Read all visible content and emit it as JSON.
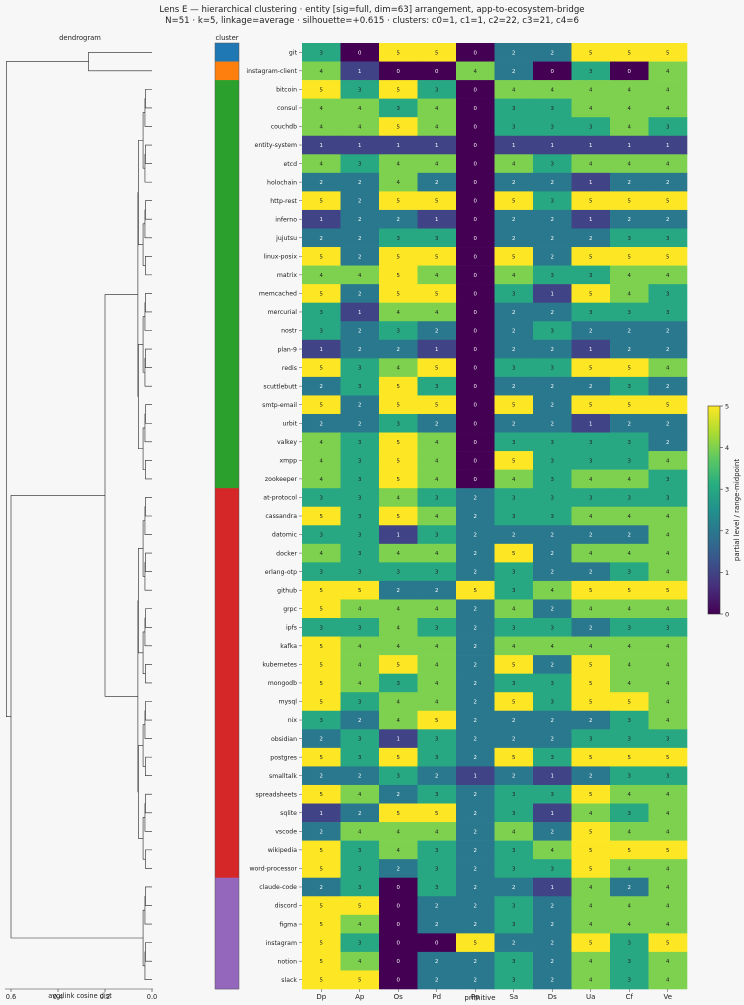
{
  "chart_data": {
    "type": "heatmap",
    "title_line1": "Lens E — hierarchical clustering · entity [sig=full, dim=63] arrangement, app-to-ecosystem-bridge",
    "title_line2": "N=51 · k=5, linkage=average · silhouette=+0.615 · clusters: c0=1, c1=1, c2=22, c3=21, c4=6",
    "dendrogram_title": "dendrogram",
    "dendrogram_xlabel": "avg-link cosine dist",
    "dendrogram_ticks": [
      0.6,
      0.4,
      0.2,
      0.0
    ],
    "dendrogram_xlim": [
      0.65,
      0.0
    ],
    "cluster_title": "cluster",
    "xlabel": "primitive",
    "colorbar_label": "partial level / range-midpoint",
    "colorbar_ticks": [
      0,
      1,
      2,
      3,
      4,
      5
    ],
    "vmin": 0,
    "vmax": 5,
    "columns": [
      "Dp",
      "Ap",
      "Os",
      "Pd",
      "Pp",
      "Sa",
      "Ds",
      "Ua",
      "Cf",
      "Ve"
    ],
    "cluster_colors": [
      "#1f77b4",
      "#ff7f0e",
      "#2ca02c",
      "#d62728",
      "#9467bd"
    ],
    "rows": [
      {
        "name": "git",
        "cluster": 0,
        "values": [
          3,
          0,
          5,
          5,
          0,
          2,
          2,
          5,
          5,
          5
        ]
      },
      {
        "name": "instagram-client",
        "cluster": 1,
        "values": [
          4,
          1,
          0,
          0,
          4,
          2,
          0,
          3,
          0,
          4
        ]
      },
      {
        "name": "bitcoin",
        "cluster": 2,
        "values": [
          5,
          3,
          5,
          3,
          0,
          4,
          4,
          4,
          4,
          4
        ]
      },
      {
        "name": "consul",
        "cluster": 2,
        "values": [
          4,
          4,
          3,
          4,
          0,
          3,
          3,
          4,
          4,
          4
        ]
      },
      {
        "name": "couchdb",
        "cluster": 2,
        "values": [
          4,
          4,
          5,
          4,
          0,
          3,
          3,
          3,
          4,
          3
        ]
      },
      {
        "name": "entity-system",
        "cluster": 2,
        "values": [
          1,
          1,
          1,
          1,
          0,
          1,
          1,
          1,
          1,
          1
        ]
      },
      {
        "name": "etcd",
        "cluster": 2,
        "values": [
          4,
          3,
          4,
          4,
          0,
          4,
          3,
          4,
          4,
          4
        ]
      },
      {
        "name": "holochain",
        "cluster": 2,
        "values": [
          2,
          2,
          4,
          2,
          0,
          2,
          2,
          1,
          2,
          2
        ]
      },
      {
        "name": "http-rest",
        "cluster": 2,
        "values": [
          5,
          2,
          5,
          5,
          0,
          5,
          3,
          5,
          5,
          5
        ]
      },
      {
        "name": "inferno",
        "cluster": 2,
        "values": [
          1,
          2,
          2,
          1,
          0,
          2,
          2,
          1,
          2,
          2
        ]
      },
      {
        "name": "jujutsu",
        "cluster": 2,
        "values": [
          2,
          2,
          3,
          3,
          0,
          2,
          2,
          2,
          3,
          3
        ]
      },
      {
        "name": "linux-posix",
        "cluster": 2,
        "values": [
          5,
          2,
          5,
          5,
          0,
          5,
          2,
          5,
          5,
          5
        ]
      },
      {
        "name": "matrix",
        "cluster": 2,
        "values": [
          4,
          4,
          5,
          4,
          0,
          4,
          3,
          3,
          4,
          4
        ]
      },
      {
        "name": "memcached",
        "cluster": 2,
        "values": [
          5,
          2,
          5,
          5,
          0,
          3,
          1,
          5,
          4,
          3
        ]
      },
      {
        "name": "mercurial",
        "cluster": 2,
        "values": [
          3,
          1,
          4,
          4,
          0,
          2,
          2,
          3,
          3,
          3
        ]
      },
      {
        "name": "nostr",
        "cluster": 2,
        "values": [
          3,
          2,
          3,
          2,
          0,
          2,
          3,
          2,
          2,
          2
        ]
      },
      {
        "name": "plan-9",
        "cluster": 2,
        "values": [
          1,
          2,
          2,
          1,
          0,
          2,
          2,
          1,
          2,
          2
        ]
      },
      {
        "name": "redis",
        "cluster": 2,
        "values": [
          5,
          3,
          4,
          5,
          0,
          3,
          3,
          5,
          5,
          4
        ]
      },
      {
        "name": "scuttlebutt",
        "cluster": 2,
        "values": [
          2,
          3,
          5,
          3,
          0,
          2,
          2,
          2,
          3,
          2
        ]
      },
      {
        "name": "smtp-email",
        "cluster": 2,
        "values": [
          5,
          2,
          5,
          5,
          0,
          5,
          2,
          5,
          5,
          5
        ]
      },
      {
        "name": "urbit",
        "cluster": 2,
        "values": [
          2,
          2,
          3,
          2,
          0,
          2,
          2,
          1,
          2,
          2
        ]
      },
      {
        "name": "valkey",
        "cluster": 2,
        "values": [
          4,
          3,
          5,
          4,
          0,
          3,
          3,
          3,
          3,
          2
        ]
      },
      {
        "name": "xmpp",
        "cluster": 2,
        "values": [
          4,
          3,
          5,
          4,
          0,
          5,
          3,
          3,
          3,
          4
        ]
      },
      {
        "name": "zookeeper",
        "cluster": 2,
        "values": [
          4,
          3,
          5,
          4,
          0,
          4,
          3,
          4,
          4,
          3
        ]
      },
      {
        "name": "at-protocol",
        "cluster": 3,
        "values": [
          3,
          3,
          4,
          3,
          2,
          3,
          3,
          3,
          3,
          3
        ]
      },
      {
        "name": "cassandra",
        "cluster": 3,
        "values": [
          5,
          3,
          5,
          4,
          2,
          3,
          3,
          4,
          4,
          4
        ]
      },
      {
        "name": "datomic",
        "cluster": 3,
        "values": [
          3,
          3,
          1,
          3,
          2,
          2,
          2,
          2,
          2,
          4
        ]
      },
      {
        "name": "docker",
        "cluster": 3,
        "values": [
          4,
          3,
          4,
          4,
          2,
          5,
          2,
          4,
          4,
          4
        ]
      },
      {
        "name": "erlang-otp",
        "cluster": 3,
        "values": [
          3,
          3,
          3,
          3,
          2,
          3,
          2,
          2,
          3,
          4
        ]
      },
      {
        "name": "github",
        "cluster": 3,
        "values": [
          5,
          5,
          2,
          2,
          5,
          3,
          4,
          5,
          5,
          5
        ]
      },
      {
        "name": "grpc",
        "cluster": 3,
        "values": [
          5,
          4,
          4,
          4,
          2,
          4,
          2,
          4,
          4,
          4
        ]
      },
      {
        "name": "ipfs",
        "cluster": 3,
        "values": [
          3,
          3,
          4,
          3,
          2,
          3,
          3,
          2,
          3,
          3
        ]
      },
      {
        "name": "kafka",
        "cluster": 3,
        "values": [
          5,
          4,
          4,
          4,
          2,
          4,
          4,
          4,
          4,
          4
        ]
      },
      {
        "name": "kubernetes",
        "cluster": 3,
        "values": [
          5,
          4,
          5,
          4,
          2,
          5,
          2,
          5,
          4,
          4
        ]
      },
      {
        "name": "mongodb",
        "cluster": 3,
        "values": [
          5,
          4,
          3,
          4,
          2,
          3,
          3,
          5,
          4,
          4
        ]
      },
      {
        "name": "mysql",
        "cluster": 3,
        "values": [
          5,
          3,
          4,
          4,
          2,
          5,
          3,
          5,
          5,
          4
        ]
      },
      {
        "name": "nix",
        "cluster": 3,
        "values": [
          3,
          2,
          4,
          5,
          2,
          2,
          2,
          2,
          3,
          4
        ]
      },
      {
        "name": "obsidian",
        "cluster": 3,
        "values": [
          2,
          3,
          1,
          3,
          2,
          2,
          2,
          3,
          3,
          3
        ]
      },
      {
        "name": "postgres",
        "cluster": 3,
        "values": [
          5,
          3,
          5,
          3,
          2,
          5,
          3,
          5,
          5,
          5
        ]
      },
      {
        "name": "smalltalk",
        "cluster": 3,
        "values": [
          2,
          2,
          3,
          2,
          1,
          2,
          1,
          2,
          3,
          3
        ]
      },
      {
        "name": "spreadsheets",
        "cluster": 3,
        "values": [
          5,
          4,
          2,
          3,
          2,
          3,
          3,
          5,
          4,
          4
        ]
      },
      {
        "name": "sqlite",
        "cluster": 3,
        "values": [
          1,
          2,
          5,
          5,
          2,
          3,
          1,
          4,
          3,
          4
        ]
      },
      {
        "name": "vscode",
        "cluster": 3,
        "values": [
          2,
          4,
          4,
          4,
          2,
          4,
          2,
          5,
          4,
          4
        ]
      },
      {
        "name": "wikipedia",
        "cluster": 3,
        "values": [
          5,
          3,
          4,
          3,
          2,
          3,
          4,
          5,
          5,
          5
        ]
      },
      {
        "name": "word-processor",
        "cluster": 3,
        "values": [
          5,
          3,
          2,
          3,
          2,
          3,
          3,
          5,
          4,
          4
        ]
      },
      {
        "name": "claude-code",
        "cluster": 4,
        "values": [
          2,
          3,
          0,
          3,
          2,
          2,
          1,
          4,
          2,
          4
        ]
      },
      {
        "name": "discord",
        "cluster": 4,
        "values": [
          5,
          5,
          0,
          2,
          2,
          3,
          2,
          4,
          4,
          4
        ]
      },
      {
        "name": "figma",
        "cluster": 4,
        "values": [
          5,
          4,
          0,
          2,
          2,
          3,
          2,
          4,
          4,
          4
        ]
      },
      {
        "name": "instagram",
        "cluster": 4,
        "values": [
          5,
          3,
          0,
          0,
          5,
          2,
          2,
          5,
          3,
          5
        ]
      },
      {
        "name": "notion",
        "cluster": 4,
        "values": [
          5,
          4,
          0,
          2,
          2,
          3,
          2,
          4,
          3,
          4
        ]
      },
      {
        "name": "slack",
        "cluster": 4,
        "values": [
          5,
          5,
          0,
          2,
          2,
          3,
          2,
          4,
          3,
          4
        ]
      }
    ]
  }
}
